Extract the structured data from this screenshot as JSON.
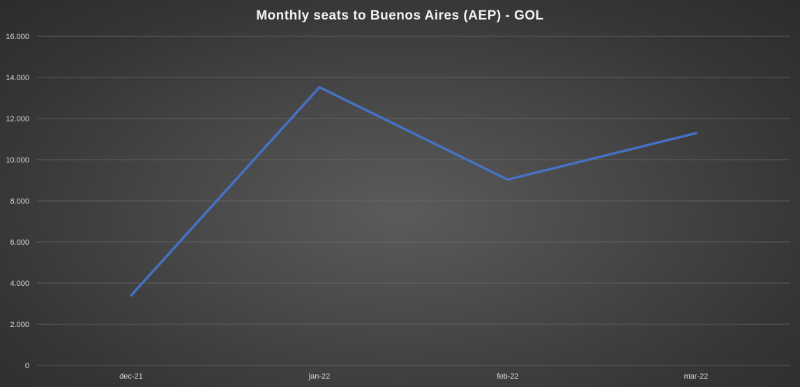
{
  "chart_data": {
    "type": "line",
    "title": "Monthly seats to Buenos Aires (AEP) - GOL",
    "categories": [
      "dec-21",
      "jan-22",
      "feb-22",
      "mar-22"
    ],
    "series": [
      {
        "values": [
          3400,
          13520,
          9030,
          11290
        ],
        "color": "#4472c4"
      }
    ],
    "yticks": [
      "0",
      "2.000",
      "4.000",
      "6.000",
      "8.000",
      "10.000",
      "12.000",
      "14.000",
      "16.000"
    ],
    "ylim": [
      0,
      16000
    ],
    "grid": true,
    "legend": "none"
  }
}
